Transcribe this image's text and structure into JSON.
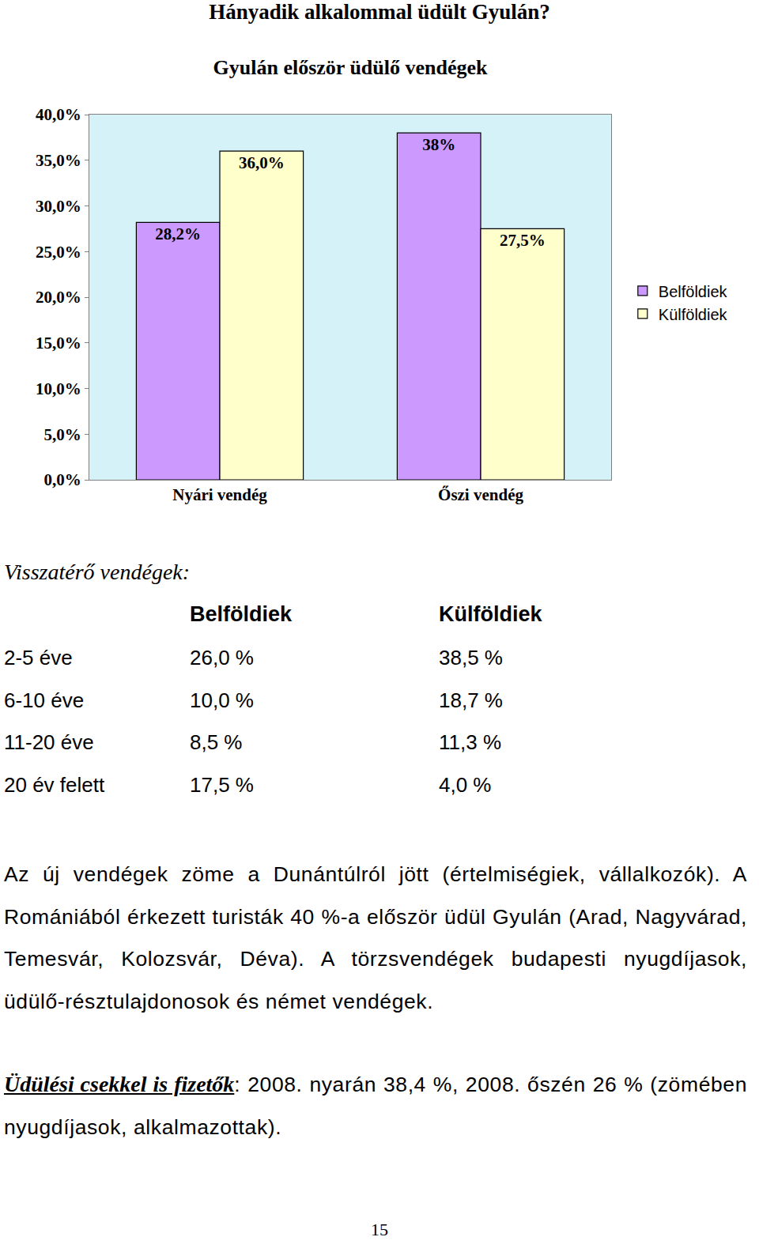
{
  "heading": "Hányadik alkalommal üdült Gyulán?",
  "chart_data": {
    "type": "bar",
    "title": "Gyulán először üdülő vendégek",
    "categories": [
      "Nyári vendég",
      "Őszi vendég"
    ],
    "series": [
      {
        "name": "Belföldiek",
        "color": "#cc99ff",
        "values": [
          28.2,
          38
        ],
        "value_labels": [
          "28,2%",
          "38%"
        ]
      },
      {
        "name": "Külföldiek",
        "color": "#ffffcc",
        "values": [
          36.0,
          27.5
        ],
        "value_labels": [
          "36,0%",
          "27,5%"
        ]
      }
    ],
    "ylim": [
      0,
      40
    ],
    "yticks": [
      {
        "value": 0,
        "label": "0,0%"
      },
      {
        "value": 5,
        "label": "5,0%"
      },
      {
        "value": 10,
        "label": "10,0%"
      },
      {
        "value": 15,
        "label": "15,0%"
      },
      {
        "value": 20,
        "label": "20,0%"
      },
      {
        "value": 25,
        "label": "25,0%"
      },
      {
        "value": 30,
        "label": "30,0%"
      },
      {
        "value": 35,
        "label": "35,0%"
      },
      {
        "value": 40,
        "label": "40,0%"
      }
    ],
    "grid": false,
    "legend": "right",
    "data_labels": true
  },
  "returning": {
    "title": "Visszatérő vendégek:",
    "header": [
      "Belföldiek",
      "Külföldiek"
    ],
    "rows": [
      [
        "2-5 éve",
        "26,0 %",
        "38,5 %"
      ],
      [
        "6-10 éve",
        "10,0 %",
        "18,7 %"
      ],
      [
        "11-20 éve",
        "8,5 %",
        "11,3 %"
      ],
      [
        "20 év felett",
        "17,5 %",
        "4,0 %"
      ]
    ]
  },
  "paragraph": "Az új vendégek zöme a Dunántúlról jött (értelmiségiek, vállalkozók). A Romániából érkezett turisták 40 %-a először üdül Gyulán (Arad, Nagyvárad, Temesvár, Kolozsvár, Déva). A törzsvendégek budapesti nyugdíjasok, üdülő-résztulajdonosok és német vendégek.",
  "note": {
    "label": "Üdülési csekkel is fizetők",
    "text": ": 2008. nyarán 38,4 %, 2008. őszén 26 % (zömében nyugdíjasok, alkalmazottak)."
  },
  "page_number": "15"
}
